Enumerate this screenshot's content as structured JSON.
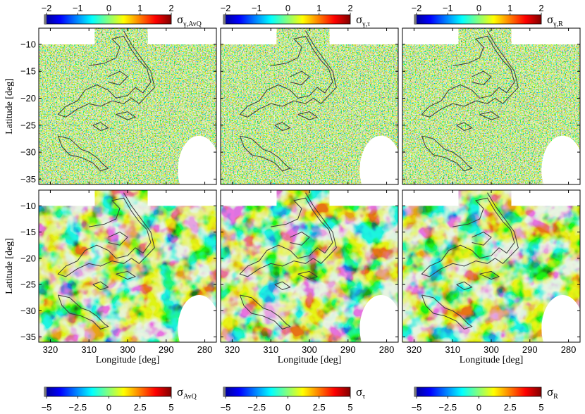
{
  "chart_data": {
    "type": "heatmap",
    "panels": [
      {
        "id": "top-left",
        "colorbar": "gamma_avq",
        "grain": "fine"
      },
      {
        "id": "top-middle",
        "colorbar": "gamma_tau",
        "grain": "fine"
      },
      {
        "id": "top-right",
        "colorbar": "gamma_r",
        "grain": "fine"
      },
      {
        "id": "bottom-left",
        "colorbar": "avq",
        "grain": "smooth"
      },
      {
        "id": "bottom-middle",
        "colorbar": "tau",
        "grain": "smooth"
      },
      {
        "id": "bottom-right",
        "colorbar": "r",
        "grain": "smooth"
      }
    ],
    "x_axis": {
      "label": "Longitude [deg]",
      "range": [
        323,
        277
      ],
      "ticks": [
        320,
        310,
        300,
        290,
        280
      ],
      "reversed": true
    },
    "y_axis": {
      "label": "Latitude [deg]",
      "range": [
        -36,
        -7
      ],
      "ticks": [
        -10,
        -15,
        -20,
        -25,
        -30,
        -35
      ]
    },
    "colorbars": {
      "gamma_avq": {
        "symbol": "σ",
        "subscript": "γ,AvQ",
        "range": [
          -2,
          2
        ],
        "ticks": [
          "−2",
          "−1",
          "0",
          "1",
          "2"
        ]
      },
      "gamma_tau": {
        "symbol": "σ",
        "subscript": "γ,τ",
        "range": [
          -2,
          2
        ],
        "ticks": [
          "−2",
          "−1",
          "0",
          "1",
          "2"
        ]
      },
      "gamma_r": {
        "symbol": "σ",
        "subscript": "γ,R",
        "range": [
          -2,
          2
        ],
        "ticks": [
          "−2",
          "−1",
          "0",
          "1",
          "2"
        ]
      },
      "avq": {
        "symbol": "σ",
        "subscript": "AvQ",
        "range": [
          -5,
          5
        ],
        "ticks": [
          "−5",
          "−2.5",
          "0",
          "2.5",
          "5"
        ]
      },
      "tau": {
        "symbol": "σ",
        "subscript": "τ",
        "range": [
          -5,
          5
        ],
        "ticks": [
          "−5",
          "−2.5",
          "0",
          "2.5",
          "5"
        ]
      },
      "r": {
        "symbol": "σ",
        "subscript": "R",
        "range": [
          -5,
          5
        ],
        "ticks": [
          "−5",
          "−2.5",
          "0",
          "2.5",
          "5"
        ]
      }
    },
    "colormap": [
      "#00008f",
      "#0000ff",
      "#0080ff",
      "#00ffff",
      "#80ff80",
      "#ffff00",
      "#ff8000",
      "#ff0000",
      "#800000"
    ],
    "field_center_color": "#8ee06a",
    "mask_color": "#ffffff",
    "contour_color": "#3a3a3a",
    "grid": false,
    "legend": "none"
  }
}
